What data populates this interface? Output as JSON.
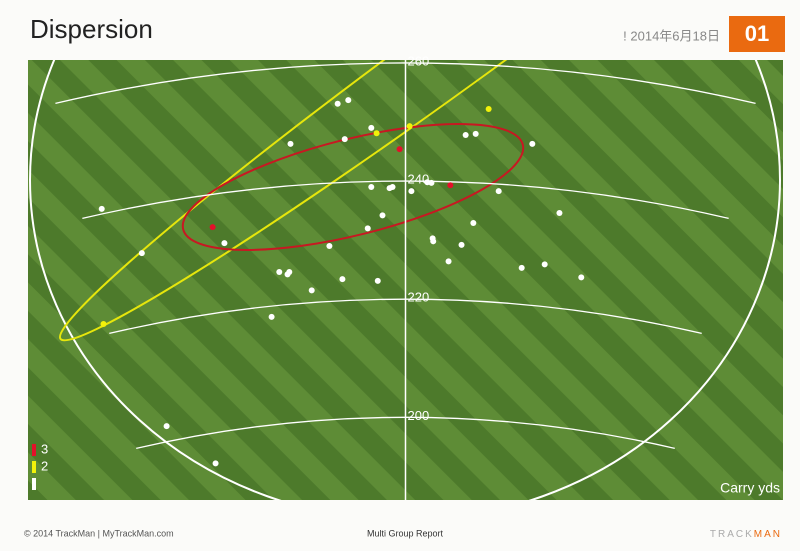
{
  "page": {
    "title": "Dispersion",
    "date": "! 2014年6月18日",
    "number": "01",
    "footer_left": "© 2014 TrackMan | MyTrackMan.com",
    "footer_center": "Multi Group Report",
    "brand_a": "TRACK",
    "brand_b": "MAN"
  },
  "chart_data": {
    "type": "scatter",
    "y_label": "Carry yds",
    "xlim": [
      -64,
      64
    ],
    "ylim": [
      186,
      260.5
    ],
    "yticks": [
      200,
      220,
      240,
      260
    ],
    "series": [
      {
        "name": "3",
        "color": "#e3102a",
        "x": [
          -1.0,
          7.6,
          -32.7
        ],
        "values": [
          245.4,
          239.3,
          232.2
        ]
      },
      {
        "name": "2",
        "color": "#f2f20a",
        "x": [
          14.1,
          0.7,
          -4.9,
          -51.2
        ],
        "values": [
          252.2,
          249.3,
          248.1,
          215.8
        ]
      },
      {
        "name": null,
        "color": "#ffffff",
        "x": [
          -9.7,
          -11.5,
          -5.8,
          -10.3,
          -19.5,
          21.5,
          10.2,
          11.9,
          -2.7,
          -5.8,
          -2.2,
          1.0,
          3.7,
          4.4,
          15.8,
          -51.5,
          26.1,
          -3.9,
          -6.4,
          11.5,
          -30.7,
          -12.9,
          4.6,
          4.7,
          9.5,
          -44.7,
          7.3,
          23.6,
          19.7,
          -21.4,
          -19.7,
          -20.0,
          -10.7,
          -4.7,
          29.8,
          -15.9,
          -22.7,
          -40.5,
          -32.2
        ],
        "values": [
          253.7,
          253.1,
          249.0,
          247.1,
          246.3,
          246.3,
          247.8,
          248.0,
          238.8,
          239.0,
          239.0,
          238.3,
          239.8,
          239.7,
          238.3,
          235.3,
          234.6,
          234.2,
          232.0,
          232.9,
          229.5,
          229.0,
          230.3,
          229.8,
          229.2,
          227.8,
          226.4,
          225.9,
          225.3,
          224.6,
          224.6,
          224.2,
          223.4,
          223.1,
          223.7,
          221.5,
          217.0,
          198.5,
          192.2
        ]
      }
    ]
  }
}
